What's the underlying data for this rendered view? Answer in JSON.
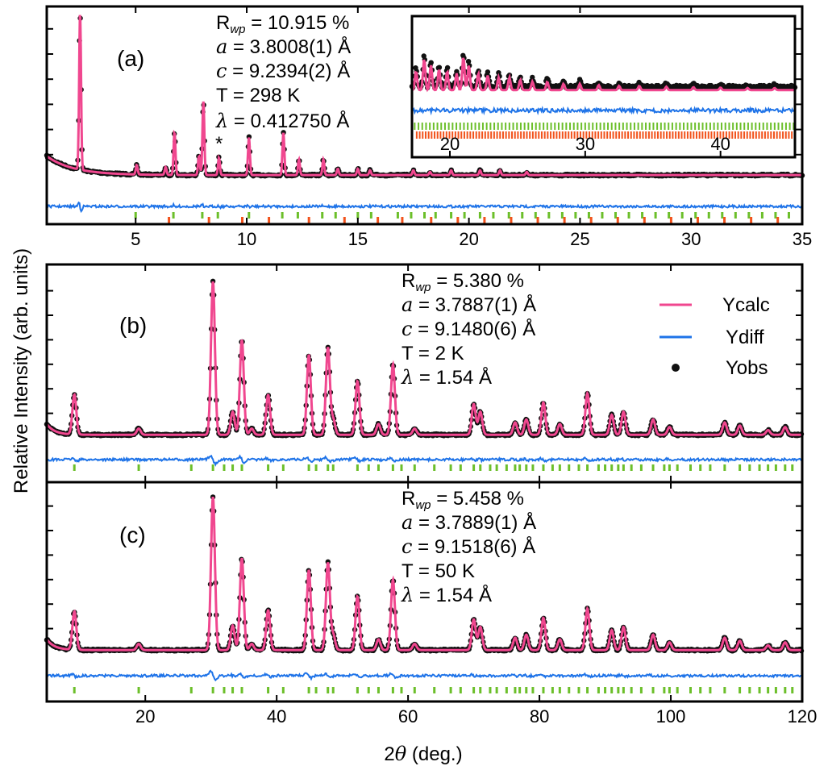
{
  "colors": {
    "ycalc": "#f0478f",
    "ydiff": "#1e73e8",
    "yobs": "#111111",
    "tick_green": "#6cbf2a",
    "tick_orange": "#f2521b"
  },
  "figure": {
    "ylabel": "Relative Intensity (arb. units)",
    "xlabel_prefix": "2",
    "xlabel_theta": "θ",
    "xlabel_suffix": " (deg.)"
  },
  "legend": [
    {
      "label": "Ycalc"
    },
    {
      "label": "Ydiff"
    },
    {
      "label": "Yobs"
    }
  ],
  "panel_a": {
    "label": "(a)",
    "annot": {
      "rwp": "R_wp = 10.915 %",
      "rwp_value": "10.915 %",
      "a": "a = 3.8008(1) Å",
      "a_value": "3.8008(1) Å",
      "c": "c = 9.2394(2) Å",
      "c_value": "9.2394(2) Å",
      "T": "T = 298 K",
      "lambda": "λ = 0.412750 Å",
      "lambda_value": "0.412750 Å"
    },
    "impurity_mark": "*",
    "inset": {
      "xticks": [
        "20",
        "30",
        "40"
      ]
    }
  },
  "panel_b": {
    "label": "(b)",
    "annot": {
      "rwp": "R_wp = 5.380 %",
      "rwp_value": "5.380 %",
      "a": "a = 3.7887(1) Å",
      "a_value": "3.7887(1) Å",
      "c": "c = 9.1480(6) Å",
      "c_value": "9.1480(6) Å",
      "T": "T = 2 K",
      "lambda": "λ = 1.54 Å",
      "lambda_value": "1.54 Å"
    }
  },
  "panel_c": {
    "label": "(c)",
    "annot": {
      "rwp": "R_wp = 5.458 %",
      "rwp_value": "5.458 %",
      "a": "a = 3.7889(1) Å",
      "a_value": "3.7889(1) Å",
      "c": "c = 9.1518(6) Å",
      "c_value": "9.1518(6) Å",
      "T": "T = 50 K",
      "lambda": "λ = 1.54 Å",
      "lambda_value": "1.54 Å"
    }
  },
  "chart_data": [
    {
      "type": "line",
      "panel": "(a)",
      "xlabel": "",
      "ylabel": "Relative Intensity (arb. units)",
      "xlim": [
        1,
        35
      ],
      "ylim": [
        -0.28,
        1.1
      ],
      "xticks": [
        5,
        10,
        15,
        20,
        25,
        30,
        35
      ],
      "xticklabels": [
        "5",
        "10",
        "15",
        "20",
        "25",
        "30",
        "35"
      ],
      "peaks": [
        [
          2.5,
          1.0
        ],
        [
          5.05,
          0.06
        ],
        [
          6.35,
          0.05
        ],
        [
          6.75,
          0.27
        ],
        [
          7.85,
          0.12
        ],
        [
          8.05,
          0.47
        ],
        [
          8.75,
          0.11
        ],
        [
          10.1,
          0.24
        ],
        [
          11.65,
          0.27
        ],
        [
          12.35,
          0.1
        ],
        [
          13.45,
          0.1
        ],
        [
          14.1,
          0.04
        ],
        [
          15.0,
          0.04
        ],
        [
          15.55,
          0.03
        ],
        [
          17.5,
          0.03
        ],
        [
          18.25,
          0.02
        ],
        [
          19.2,
          0.03
        ],
        [
          20.5,
          0.03
        ],
        [
          21.4,
          0.03
        ],
        [
          22.6,
          0.02
        ]
      ],
      "background": {
        "at_1": 0.12,
        "floor": 0.03
      },
      "ticks_green": [
        5,
        6.7,
        8,
        8.7,
        10.1,
        11.6,
        12.3,
        13.4,
        14,
        15,
        15.6,
        16.8,
        17.4,
        18,
        18.5,
        19.2,
        19.8,
        20.5,
        21.1,
        21.8,
        22.4,
        23,
        23.6,
        24.2,
        24.8,
        25.4,
        26,
        26.6,
        27.2,
        27.8,
        28.4,
        29,
        29.6,
        30.2,
        30.8,
        31.4,
        32,
        32.6,
        33.2,
        33.8,
        34.4
      ],
      "ticks_orange": [
        6.5,
        8.3,
        9.8,
        11,
        12.8,
        14.4,
        15.9,
        17,
        18.3,
        19.5,
        20.7,
        21.9,
        23.1,
        24.3,
        25.5,
        26.7,
        27.9,
        29.1,
        30.3,
        31.5,
        32.7,
        33.9
      ],
      "series": [
        {
          "name": "Ycalc",
          "ref": "peaks"
        },
        {
          "name": "Ydiff"
        },
        {
          "name": "Yobs"
        }
      ],
      "inset": {
        "xlim": [
          17.2,
          45.5
        ],
        "xticks": [
          20,
          30,
          40
        ],
        "peaks": [
          [
            17.5,
            0.45
          ],
          [
            18.1,
            0.75
          ],
          [
            18.6,
            0.6
          ],
          [
            19.2,
            0.5
          ],
          [
            19.8,
            0.45
          ],
          [
            20.5,
            0.4
          ],
          [
            21.0,
            0.8
          ],
          [
            21.4,
            0.6
          ],
          [
            22.1,
            0.4
          ],
          [
            22.8,
            0.35
          ],
          [
            23.6,
            0.3
          ],
          [
            24.4,
            0.3
          ],
          [
            25.2,
            0.25
          ],
          [
            26.1,
            0.2
          ],
          [
            27.2,
            0.2
          ],
          [
            28.4,
            0.15
          ],
          [
            29.6,
            0.15
          ],
          [
            31,
            0.12
          ],
          [
            32.5,
            0.1
          ],
          [
            34,
            0.1
          ],
          [
            36,
            0.08
          ],
          [
            38,
            0.07
          ],
          [
            40,
            0.06
          ],
          [
            42,
            0.05
          ],
          [
            44,
            0.05
          ]
        ]
      }
    },
    {
      "type": "line",
      "panel": "(b)",
      "xlabel": "",
      "ylabel": "Relative Intensity (arb. units)",
      "xlim": [
        5,
        120
      ],
      "ylim": [
        -0.32,
        1.3
      ],
      "peaks": [
        [
          9.2,
          0.26
        ],
        [
          19.0,
          0.04
        ],
        [
          30.3,
          1.0
        ],
        [
          33.3,
          0.15
        ],
        [
          34.7,
          0.62
        ],
        [
          36.2,
          0.04
        ],
        [
          38.7,
          0.26
        ],
        [
          44.9,
          0.52
        ],
        [
          47.8,
          0.57
        ],
        [
          48.6,
          0.1
        ],
        [
          52.3,
          0.35
        ],
        [
          55.5,
          0.07
        ],
        [
          57.7,
          0.46
        ],
        [
          61.0,
          0.04
        ],
        [
          70.0,
          0.2
        ],
        [
          71.0,
          0.15
        ],
        [
          76.3,
          0.08
        ],
        [
          78.0,
          0.1
        ],
        [
          80.6,
          0.21
        ],
        [
          83.1,
          0.07
        ],
        [
          87.3,
          0.27
        ],
        [
          91.0,
          0.13
        ],
        [
          92.8,
          0.15
        ],
        [
          97.3,
          0.1
        ],
        [
          99.8,
          0.05
        ],
        [
          108.2,
          0.08
        ],
        [
          110.5,
          0.06
        ],
        [
          114.8,
          0.03
        ],
        [
          117.4,
          0.05
        ]
      ],
      "background": {
        "at_5": 0.07,
        "floor": 0.02
      },
      "ticks_green": [
        9.2,
        19,
        27,
        30.3,
        32,
        33.3,
        34.7,
        38.7,
        41,
        44.9,
        46,
        47.8,
        48.6,
        52.3,
        54,
        55.5,
        57.7,
        59,
        61,
        64,
        66.5,
        68,
        70,
        71,
        72.5,
        73.5,
        75,
        76.3,
        77,
        78,
        79,
        80.6,
        82,
        83.1,
        84.5,
        86,
        87.3,
        89,
        90,
        91,
        92,
        92.8,
        94,
        95.5,
        97.3,
        99,
        99.8,
        101,
        103,
        104.5,
        106,
        108.2,
        110.5,
        112,
        113.5,
        114.8,
        116,
        117.4,
        118.5
      ],
      "series": [
        {
          "name": "Ycalc",
          "ref": "peaks"
        },
        {
          "name": "Ydiff"
        },
        {
          "name": "Yobs"
        }
      ]
    },
    {
      "type": "line",
      "panel": "(c)",
      "xlabel": "2θ (deg.)",
      "ylabel": "Relative Intensity (arb. units)",
      "xlim": [
        5,
        120
      ],
      "ylim": [
        -0.32,
        1.3
      ],
      "xticks": [
        20,
        40,
        60,
        80,
        100,
        120
      ],
      "xticklabels": [
        "20",
        "40",
        "60",
        "80",
        "100",
        "120"
      ],
      "peaks": [
        [
          9.2,
          0.25
        ],
        [
          19.0,
          0.04
        ],
        [
          30.3,
          1.0
        ],
        [
          33.3,
          0.16
        ],
        [
          34.7,
          0.6
        ],
        [
          36.2,
          0.04
        ],
        [
          38.7,
          0.26
        ],
        [
          44.9,
          0.52
        ],
        [
          47.8,
          0.57
        ],
        [
          48.6,
          0.1
        ],
        [
          52.3,
          0.35
        ],
        [
          55.5,
          0.07
        ],
        [
          57.7,
          0.46
        ],
        [
          61.0,
          0.04
        ],
        [
          70.0,
          0.2
        ],
        [
          71.0,
          0.15
        ],
        [
          76.3,
          0.08
        ],
        [
          78.0,
          0.1
        ],
        [
          80.6,
          0.21
        ],
        [
          83.1,
          0.07
        ],
        [
          87.3,
          0.27
        ],
        [
          91.0,
          0.13
        ],
        [
          92.8,
          0.15
        ],
        [
          97.3,
          0.1
        ],
        [
          99.8,
          0.05
        ],
        [
          108.2,
          0.08
        ],
        [
          110.5,
          0.06
        ],
        [
          114.8,
          0.03
        ],
        [
          117.4,
          0.05
        ]
      ],
      "background": {
        "at_5": 0.07,
        "floor": 0.02
      },
      "ticks_green": [
        9.2,
        19,
        27,
        30.3,
        32,
        33.3,
        34.7,
        38.7,
        41,
        44.9,
        46,
        47.8,
        48.6,
        52.3,
        54,
        55.5,
        57.7,
        59,
        61,
        64,
        66.5,
        68,
        70,
        71,
        72.5,
        73.5,
        75,
        76.3,
        77,
        78,
        79,
        80.6,
        82,
        83.1,
        84.5,
        86,
        87.3,
        89,
        90,
        91,
        92,
        92.8,
        94,
        95.5,
        97.3,
        99,
        99.8,
        101,
        103,
        104.5,
        106,
        108.2,
        110.5,
        112,
        113.5,
        114.8,
        116,
        117.4,
        118.5
      ],
      "series": [
        {
          "name": "Ycalc",
          "ref": "peaks"
        },
        {
          "name": "Ydiff"
        },
        {
          "name": "Yobs"
        }
      ]
    }
  ]
}
